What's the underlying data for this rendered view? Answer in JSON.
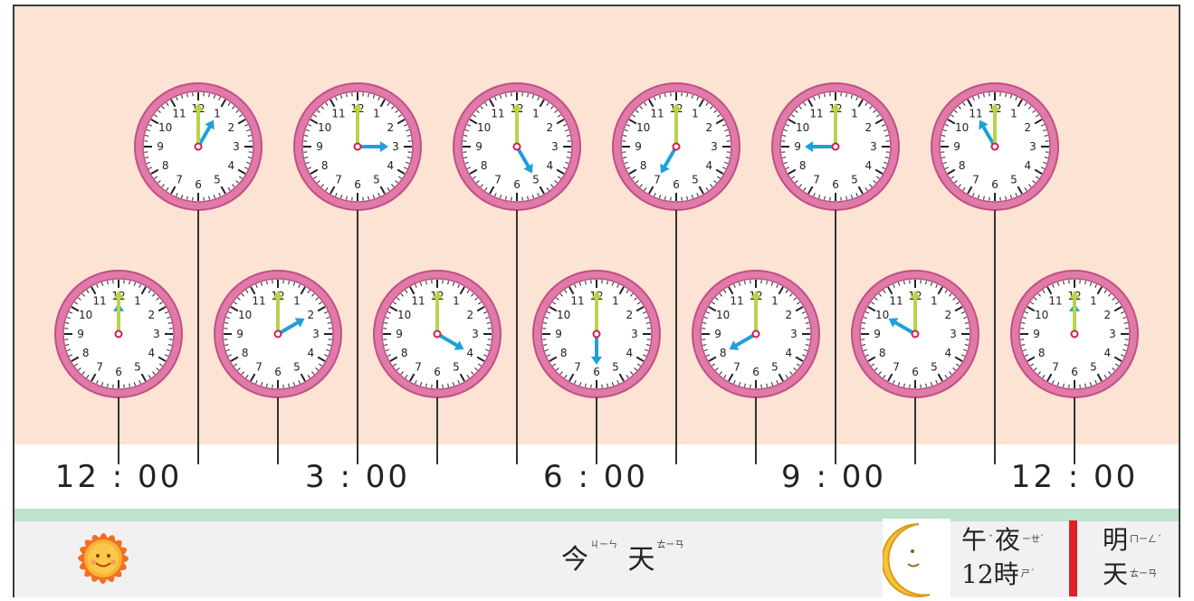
{
  "colors": {
    "background": "#fde3d3",
    "band_green": "#bfe3cc",
    "bottom_bar": "#f1f1f1",
    "clock_rim": "#e07aa8",
    "clock_rim_dark": "#c14f86",
    "hour_hand": "#1fa0d8",
    "minute_hand": "#b8d44a",
    "divider": "#e01f26"
  },
  "clocks": [
    {
      "hour": 12,
      "row": "bottom"
    },
    {
      "hour": 1,
      "row": "top"
    },
    {
      "hour": 2,
      "row": "bottom"
    },
    {
      "hour": 3,
      "row": "top"
    },
    {
      "hour": 4,
      "row": "bottom"
    },
    {
      "hour": 5,
      "row": "top"
    },
    {
      "hour": 6,
      "row": "bottom"
    },
    {
      "hour": 7,
      "row": "top"
    },
    {
      "hour": 8,
      "row": "bottom"
    },
    {
      "hour": 9,
      "row": "top"
    },
    {
      "hour": 10,
      "row": "bottom"
    },
    {
      "hour": 11,
      "row": "top"
    },
    {
      "hour": 12,
      "row": "bottom"
    }
  ],
  "dial_numbers": [
    "12",
    "1",
    "2",
    "3",
    "4",
    "5",
    "6",
    "7",
    "8",
    "9",
    "10",
    "11"
  ],
  "time_labels": [
    "12 : 00",
    "3 : 00",
    "6 : 00",
    "9 : 00",
    "12 : 00"
  ],
  "bottom": {
    "today": {
      "c1": "今",
      "z1": "ㄐㄧㄣ",
      "c2": "天",
      "z2": "ㄊㄧㄢ"
    },
    "midnight": {
      "line1_a": "午",
      "z_a": "ˇ",
      "line1_b": "夜",
      "z_b": "ㄧㄝˋ",
      "line2": "12時",
      "z_c": "ㄕˊ"
    },
    "tomorrow": {
      "c1": "明",
      "z1": "ㄇㄧㄥˊ",
      "c2": "天",
      "z2": "ㄊㄧㄢ"
    }
  },
  "icons": [
    "sun-icon",
    "moon-icon"
  ]
}
